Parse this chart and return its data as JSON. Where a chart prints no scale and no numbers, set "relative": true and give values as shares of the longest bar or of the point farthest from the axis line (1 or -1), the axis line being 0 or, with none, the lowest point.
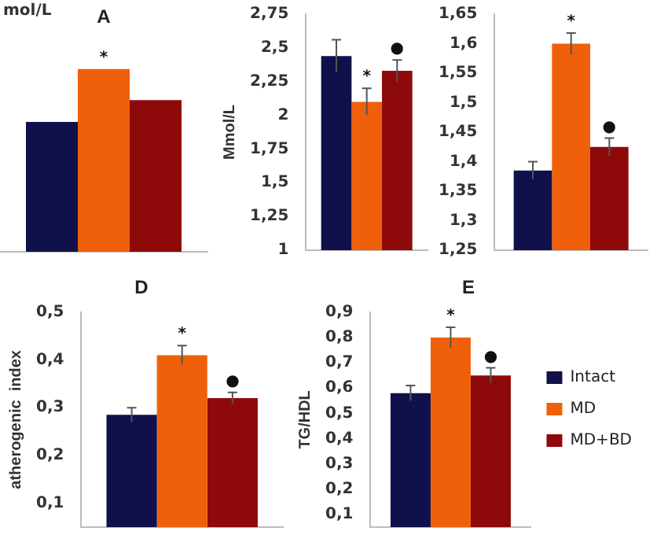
{
  "chart_data": [
    {
      "type": "bar",
      "title": "A",
      "ylabel": "mol/L",
      "relative": true,
      "categories": [
        null
      ],
      "legend": false,
      "annotations": [
        "*"
      ],
      "series": [
        {
          "color": "#10104a",
          "values": [
            0.71
          ]
        },
        {
          "color": "#f0600a",
          "values": [
            1
          ]
        },
        {
          "color": "#8e0a0a",
          "values": [
            0.83
          ]
        }
      ]
    },
    {
      "type": "bar",
      "ylabel": "Mmol/L",
      "categories": [
        null
      ],
      "legend": false,
      "annotations": [
        "*",
        "●"
      ],
      "ylim": [
        1,
        2.75
      ],
      "yticks": [
        1,
        {
          "value": 1.25,
          "label": "1,25"
        },
        {
          "value": 1.5,
          "label": "1,5"
        },
        {
          "value": 1.75,
          "label": "1,75"
        },
        2,
        {
          "value": 2.25,
          "label": "2,25"
        },
        {
          "value": 2.5,
          "label": "2,5"
        },
        {
          "value": 2.75,
          "label": "2,75"
        }
      ],
      "series": [
        {
          "color": "#10104a",
          "values": [
            2.44
          ],
          "errors": [
            0.12
          ]
        },
        {
          "color": "#f0600a",
          "values": [
            2.1
          ],
          "errors": [
            0.1
          ]
        },
        {
          "color": "#8e0a0a",
          "values": [
            2.33
          ],
          "errors": [
            0.08
          ]
        }
      ]
    },
    {
      "type": "bar",
      "categories": [
        null
      ],
      "legend": false,
      "annotations": [
        "*",
        "●"
      ],
      "ylim": [
        1.25,
        1.65
      ],
      "yticks": [
        {
          "value": 1.25,
          "label": "1,25"
        },
        {
          "value": 1.3,
          "label": "1,3"
        },
        {
          "value": 1.35,
          "label": "1,35"
        },
        {
          "value": 1.4,
          "label": "1,4"
        },
        {
          "value": 1.45,
          "label": "1,45"
        },
        {
          "value": 1.5,
          "label": "1,5"
        },
        {
          "value": 1.55,
          "label": "1,55"
        },
        {
          "value": 1.6,
          "label": "1,6"
        },
        {
          "value": 1.65,
          "label": "1,65"
        }
      ],
      "series": [
        {
          "color": "#10104a",
          "values": [
            1.385
          ],
          "errors": [
            0.015
          ]
        },
        {
          "color": "#f0600a",
          "values": [
            1.6
          ],
          "errors": [
            0.018
          ]
        },
        {
          "color": "#8e0a0a",
          "values": [
            1.425
          ],
          "errors": [
            0.015
          ]
        }
      ]
    },
    {
      "type": "bar",
      "title": "D",
      "ylabel": "atherogenic  index",
      "categories": [
        null
      ],
      "legend": false,
      "annotations": [
        "*",
        "●"
      ],
      "ylim": [
        0.05,
        0.5
      ],
      "yticks": [
        {
          "value": 0.1,
          "label": "0,1"
        },
        {
          "value": 0.2,
          "label": "0,2"
        },
        {
          "value": 0.3,
          "label": "0,3"
        },
        {
          "value": 0.4,
          "label": "0,4"
        },
        {
          "value": 0.5,
          "label": "0,5"
        }
      ],
      "series": [
        {
          "color": "#10104a",
          "values": [
            0.285
          ],
          "errors": [
            0.015
          ]
        },
        {
          "color": "#f0600a",
          "values": [
            0.41
          ],
          "errors": [
            0.02
          ]
        },
        {
          "color": "#8e0a0a",
          "values": [
            0.32
          ],
          "errors": [
            0.012
          ]
        }
      ]
    },
    {
      "type": "bar",
      "title": "E",
      "ylabel": "TG/HDL",
      "categories": [
        null
      ],
      "legend": "right",
      "annotations": [
        "*",
        "●"
      ],
      "ylim": [
        0.05,
        0.9
      ],
      "yticks": [
        {
          "value": 0.1,
          "label": "0,1"
        },
        {
          "value": 0.2,
          "label": "0,2"
        },
        {
          "value": 0.3,
          "label": "0,3"
        },
        {
          "value": 0.4,
          "label": "0,4"
        },
        {
          "value": 0.5,
          "label": "0,5"
        },
        {
          "value": 0.6,
          "label": "0,6"
        },
        {
          "value": 0.7,
          "label": "0,7"
        },
        {
          "value": 0.8,
          "label": "0,8"
        },
        {
          "value": 0.9,
          "label": "0,9"
        }
      ],
      "series": [
        {
          "name": "Intact",
          "color": "#10104a",
          "values": [
            0.58
          ],
          "errors": [
            0.03
          ]
        },
        {
          "name": "MD",
          "color": "#f0600a",
          "values": [
            0.8
          ],
          "errors": [
            0.04
          ]
        },
        {
          "name": "MD+BD",
          "color": "#8e0a0a",
          "values": [
            0.65
          ],
          "errors": [
            0.03
          ]
        }
      ]
    }
  ]
}
